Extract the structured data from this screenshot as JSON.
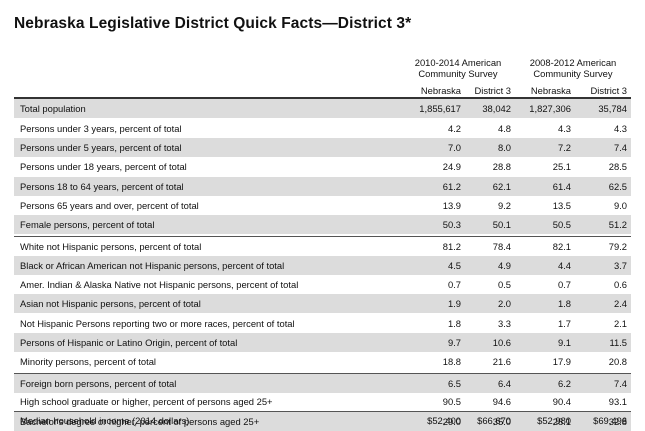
{
  "title": "Nebraska Legislative District Quick Facts—District 3*",
  "header": {
    "group1": [
      "2010-2014 American",
      "Community Survey"
    ],
    "group2": [
      "2008-2012 American",
      "Community Survey"
    ],
    "columns": [
      "Nebraska",
      "District 3",
      "Nebraska",
      "District 3"
    ]
  },
  "rows": [
    {
      "label": "Total population",
      "values": [
        "1,855,617",
        "38,042",
        "1,827,306",
        "35,784"
      ]
    },
    {
      "label": "Persons under 3 years, percent of total",
      "values": [
        "4.2",
        "4.8",
        "4.3",
        "4.3"
      ]
    },
    {
      "label": "Persons under 5 years, percent of total",
      "values": [
        "7.0",
        "8.0",
        "7.2",
        "7.4"
      ]
    },
    {
      "label": "Persons under 18 years, percent of total",
      "values": [
        "24.9",
        "28.8",
        "25.1",
        "28.5"
      ]
    },
    {
      "label": "Persons 18 to 64 years, percent of total",
      "values": [
        "61.2",
        "62.1",
        "61.4",
        "62.5"
      ]
    },
    {
      "label": "Persons 65 years and over, percent of total",
      "values": [
        "13.9",
        "9.2",
        "13.5",
        "9.0"
      ]
    },
    {
      "label": "Female persons, percent of total",
      "values": [
        "50.3",
        "50.1",
        "50.5",
        "51.2"
      ]
    },
    {
      "label": "White not Hispanic persons, percent of total",
      "values": [
        "81.2",
        "78.4",
        "82.1",
        "79.2"
      ]
    },
    {
      "label": "Black or African American not Hispanic persons, percent of total",
      "values": [
        "4.5",
        "4.9",
        "4.4",
        "3.7"
      ]
    },
    {
      "label": "Amer. Indian & Alaska Native not Hispanic persons, percent of total",
      "values": [
        "0.7",
        "0.5",
        "0.7",
        "0.6"
      ]
    },
    {
      "label": "Asian not Hispanic persons, percent of total",
      "values": [
        "1.9",
        "2.0",
        "1.8",
        "2.4"
      ]
    },
    {
      "label": "Not Hispanic Persons reporting two or more races, percent of total",
      "values": [
        "1.8",
        "3.3",
        "1.7",
        "2.1"
      ]
    },
    {
      "label": "Persons of Hispanic or Latino Origin, percent of total",
      "values": [
        "9.7",
        "10.6",
        "9.1",
        "11.5"
      ]
    },
    {
      "label": "Minority persons, percent of total",
      "values": [
        "18.8",
        "21.6",
        "17.9",
        "20.8"
      ]
    },
    {
      "label": "Foreign born persons, percent of total",
      "values": [
        "6.5",
        "6.4",
        "6.2",
        "7.4"
      ]
    },
    {
      "label": "High school graduate or higher, percent of persons aged 25+",
      "values": [
        "90.5",
        "94.6",
        "90.4",
        "93.1"
      ]
    },
    {
      "label": "Bachelor's degree or higher, percent of persons aged 25+",
      "values": [
        "29.0",
        "35.0",
        "28.1",
        "32.8"
      ]
    },
    {
      "label": "Median household income (2014 dollars)",
      "values": [
        "$52,400",
        "$66,670",
        "$52,980",
        "$69,496"
      ]
    }
  ],
  "colors": {
    "shade": "#dcdcdc",
    "rule": "#555555"
  }
}
